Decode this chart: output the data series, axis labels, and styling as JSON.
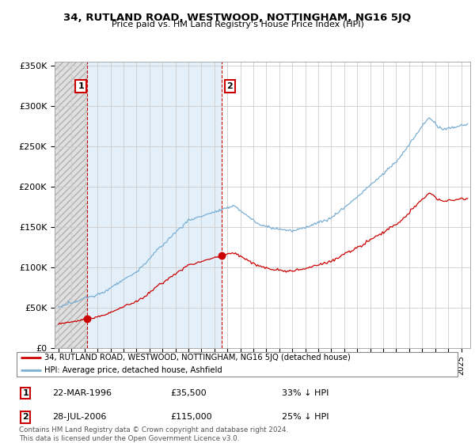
{
  "title": "34, RUTLAND ROAD, WESTWOOD, NOTTINGHAM, NG16 5JQ",
  "subtitle": "Price paid vs. HM Land Registry's House Price Index (HPI)",
  "legend_line1": "34, RUTLAND ROAD, WESTWOOD, NOTTINGHAM, NG16 5JQ (detached house)",
  "legend_line2": "HPI: Average price, detached house, Ashfield",
  "transaction1_date": "22-MAR-1996",
  "transaction1_price": "£35,500",
  "transaction1_hpi": "33% ↓ HPI",
  "transaction2_date": "28-JUL-2006",
  "transaction2_price": "£115,000",
  "transaction2_hpi": "25% ↓ HPI",
  "footnote": "Contains HM Land Registry data © Crown copyright and database right 2024.\nThis data is licensed under the Open Government Licence v3.0.",
  "hpi_color": "#7bafd4",
  "price_color": "#cc0000",
  "dashed_color": "#cc0000",
  "label_box_color": "#cc0000",
  "ylim": [
    0,
    350000
  ],
  "yticks": [
    0,
    50000,
    100000,
    150000,
    200000,
    250000,
    300000,
    350000
  ],
  "ytick_labels": [
    "£0",
    "£50K",
    "£100K",
    "£150K",
    "£200K",
    "£250K",
    "£300K",
    "£350K"
  ],
  "t1_year": 1996.22,
  "t1_price": 35500,
  "t2_year": 2006.58,
  "t2_price": 115000,
  "xstart": 1993.7,
  "xend": 2025.7
}
